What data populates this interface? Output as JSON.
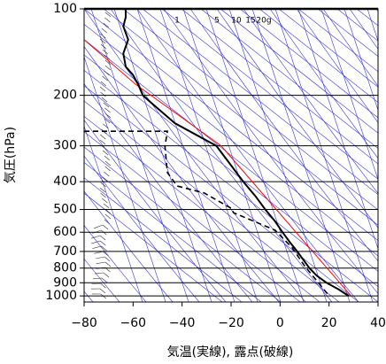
{
  "chart_data": {
    "type": "line",
    "xlabel": "気温(実線), 露点(破線)",
    "ylabel": "気圧(hPa)",
    "xlim": [
      -80,
      40
    ],
    "ylim": [
      100,
      1050
    ],
    "ylog": true,
    "yinverted": true,
    "grid": true,
    "xticks": [
      {
        "value": -80,
        "label": "−80"
      },
      {
        "value": -60,
        "label": "−60"
      },
      {
        "value": -40,
        "label": "−40"
      },
      {
        "value": -20,
        "label": "−20"
      },
      0,
      20,
      40
    ],
    "yticks": [
      100,
      200,
      300,
      400,
      500,
      600,
      700,
      800,
      900,
      1000
    ],
    "annotations": [
      "1",
      "5",
      "10",
      "15",
      "20g"
    ],
    "series": [
      {
        "color": "#ff0000",
        "dash": false,
        "width": 1,
        "x": [
          -80,
          -59,
          -24,
          29
        ],
        "y": [
          128,
          183,
          300,
          1000
        ]
      },
      {
        "color": "#000000",
        "dash": false,
        "width": 2,
        "x": [
          -63,
          -63,
          -64,
          -62,
          -64,
          -63,
          -60,
          -58,
          -56,
          -53,
          -43,
          -26,
          -15,
          -10,
          -6,
          -2,
          1,
          4,
          7,
          12,
          15,
          19,
          24,
          28
        ],
        "y": [
          100,
          107,
          115,
          128,
          143,
          159,
          170,
          183,
          200,
          211,
          250,
          300,
          400,
          450,
          500,
          550,
          600,
          650,
          700,
          800,
          850,
          900,
          950,
          1000
        ]
      },
      {
        "color": "#000000",
        "dash": true,
        "width": 1.6,
        "x": [
          -80,
          -46,
          -47,
          -46,
          -42,
          -31,
          -20,
          -19,
          -2,
          5,
          10,
          19,
          20
        ],
        "y": [
          267,
          267,
          301,
          372,
          414,
          438,
          495,
          513,
          590,
          681,
          786,
          975,
          1000
        ]
      }
    ]
  }
}
